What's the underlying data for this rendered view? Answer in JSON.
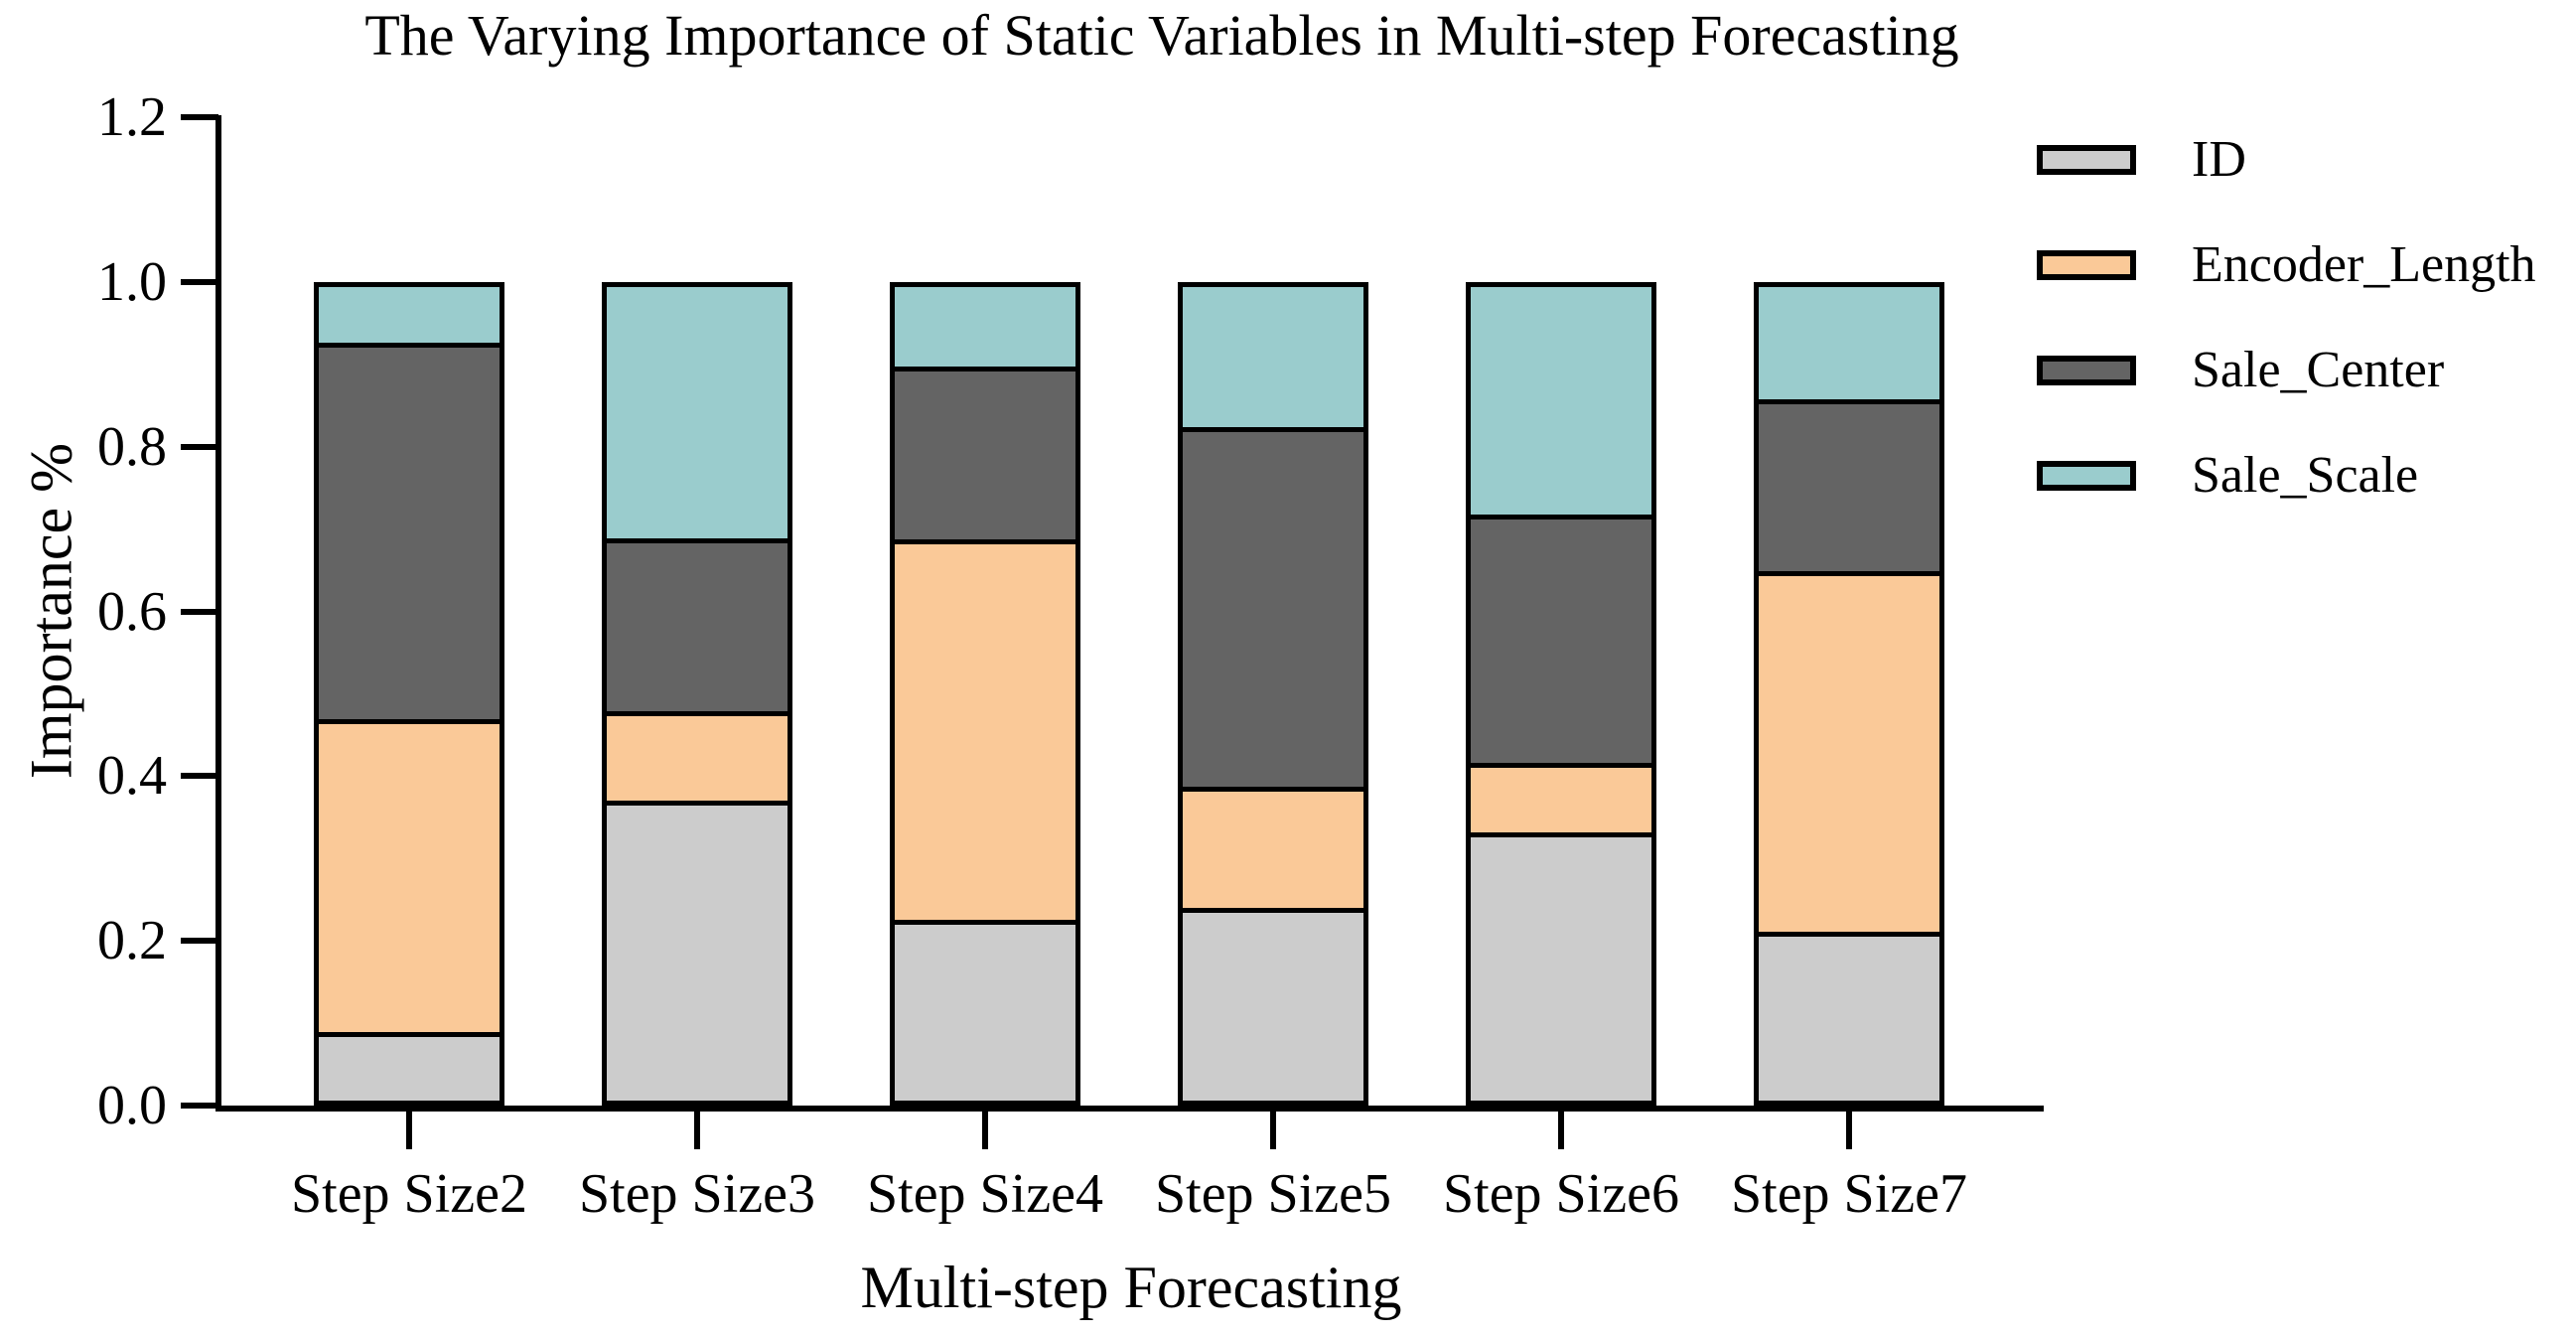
{
  "chart_data": {
    "type": "bar",
    "stacked": true,
    "title": "The Varying Importance of Static Variables in Multi-step Forecasting",
    "xlabel": "Multi-step Forecasting",
    "ylabel": "Importance %",
    "ylim": [
      0.0,
      1.2
    ],
    "grid": false,
    "legend_position": "outside-upper-right",
    "y_tick_labels": [
      "0.0",
      "0.2",
      "0.4",
      "0.6",
      "0.8",
      "1.0",
      "1.2"
    ],
    "categories": [
      "Step Size2",
      "Step Size3",
      "Step Size4",
      "Step Size5",
      "Step Size6",
      "Step Size7"
    ],
    "series": [
      {
        "name": "ID",
        "color": "#cccccc",
        "values": [
          0.08,
          0.37,
          0.22,
          0.235,
          0.33,
          0.205
        ]
      },
      {
        "name": "Encoder_Length",
        "color": "#fac998",
        "values": [
          0.385,
          0.105,
          0.47,
          0.145,
          0.08,
          0.445
        ]
      },
      {
        "name": "Sale_Center",
        "color": "#646464",
        "values": [
          0.465,
          0.21,
          0.21,
          0.445,
          0.305,
          0.21
        ]
      },
      {
        "name": "Sale_Scale",
        "color": "#9acccd",
        "values": [
          0.07,
          0.315,
          0.1,
          0.175,
          0.285,
          0.14
        ]
      }
    ],
    "edge_color": "#000000"
  }
}
